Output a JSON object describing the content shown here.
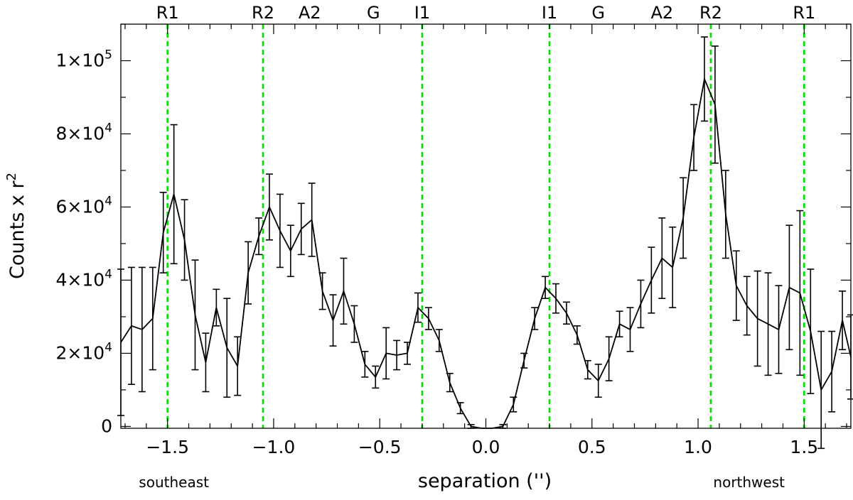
{
  "chart_data": {
    "type": "line",
    "title": "",
    "xlabel": "separation ('')",
    "ylabel": "Counts x r",
    "ylabel_sup": "2",
    "xlim": [
      -1.72,
      1.72
    ],
    "ylim": [
      -500,
      110000
    ],
    "xticks": [
      -1.5,
      -1.0,
      -0.5,
      0.0,
      0.5,
      1.0,
      1.5
    ],
    "xtick_labels": [
      "−1.5",
      "−1.0",
      "−0.5",
      "0.0",
      "0.5",
      "1.0",
      "1.5"
    ],
    "yticks": [
      {
        "value": 0,
        "base": "0",
        "exp": ""
      },
      {
        "value": 20000,
        "base": "2×10",
        "exp": "4"
      },
      {
        "value": 40000,
        "base": "4×10",
        "exp": "4"
      },
      {
        "value": 60000,
        "base": "6×10",
        "exp": "4"
      },
      {
        "value": 80000,
        "base": "8×10",
        "exp": "4"
      },
      {
        "value": 100000,
        "base": "1×10",
        "exp": "5"
      }
    ],
    "side_labels": {
      "left": "southeast",
      "right": "northwest"
    },
    "vertical_lines": [
      {
        "x": -1.5,
        "label": "R1"
      },
      {
        "x": -1.05,
        "label": "R2"
      },
      {
        "x": -0.3,
        "label": "I1"
      },
      {
        "x": 0.3,
        "label": "I1"
      },
      {
        "x": 1.06,
        "label": "R2"
      },
      {
        "x": 1.5,
        "label": "R1"
      }
    ],
    "extra_top_labels": [
      {
        "x": -0.83,
        "label": "A2"
      },
      {
        "x": -0.53,
        "label": "G"
      },
      {
        "x": 0.53,
        "label": "G"
      },
      {
        "x": 0.83,
        "label": "A2"
      }
    ],
    "grid": false,
    "series": [
      {
        "x": [
          -1.72,
          -1.67,
          -1.62,
          -1.57,
          -1.52,
          -1.47,
          -1.42,
          -1.37,
          -1.32,
          -1.27,
          -1.22,
          -1.17,
          -1.12,
          -1.07,
          -1.02,
          -0.97,
          -0.92,
          -0.87,
          -0.82,
          -0.77,
          -0.72,
          -0.67,
          -0.62,
          -0.57,
          -0.52,
          -0.47,
          -0.42,
          -0.37,
          -0.32,
          -0.27,
          -0.22,
          -0.17,
          -0.12,
          -0.07,
          -0.02,
          0.03,
          0.08,
          0.13,
          0.18,
          0.23,
          0.28,
          0.33,
          0.38,
          0.43,
          0.48,
          0.53,
          0.58,
          0.63,
          0.68,
          0.73,
          0.78,
          0.83,
          0.88,
          0.93,
          0.98,
          1.03,
          1.08,
          1.13,
          1.18,
          1.23,
          1.28,
          1.33,
          1.38,
          1.43,
          1.48,
          1.53,
          1.58,
          1.63,
          1.68,
          1.72
        ],
        "y": [
          23000,
          27500,
          26500,
          29500,
          53000,
          63500,
          51000,
          30500,
          17500,
          32500,
          21500,
          16500,
          42000,
          52000,
          60000,
          53500,
          48000,
          54000,
          56500,
          37000,
          29000,
          37000,
          28000,
          17000,
          13500,
          20000,
          19500,
          20000,
          32500,
          29500,
          23500,
          12000,
          5000,
          0,
          -500,
          -500,
          0,
          6000,
          18000,
          29500,
          38000,
          35000,
          31000,
          25000,
          15500,
          12500,
          18500,
          28000,
          26500,
          33500,
          40000,
          46000,
          43500,
          57000,
          79000,
          95000,
          88000,
          58000,
          38500,
          33000,
          29500,
          28000,
          26500,
          38000,
          36500,
          26000,
          10000,
          15000,
          29000,
          19000
        ],
        "err": [
          20000,
          16000,
          17000,
          14000,
          11000,
          19000,
          11000,
          15000,
          8000,
          5000,
          13500,
          8000,
          8500,
          5000,
          9000,
          10000,
          7000,
          7000,
          10000,
          5000,
          7000,
          9000,
          5000,
          3500,
          3000,
          7000,
          4000,
          3000,
          4000,
          3000,
          3000,
          2500,
          1500,
          500,
          0,
          0,
          500,
          2000,
          2000,
          3000,
          3000,
          4000,
          3000,
          2500,
          2500,
          4500,
          6000,
          3500,
          6000,
          6500,
          9000,
          11000,
          11000,
          11000,
          9000,
          11500,
          16000,
          12000,
          9500,
          8000,
          13000,
          14000,
          12000,
          17000,
          22500,
          17000,
          16000,
          11000,
          8000,
          11500
        ]
      }
    ]
  }
}
